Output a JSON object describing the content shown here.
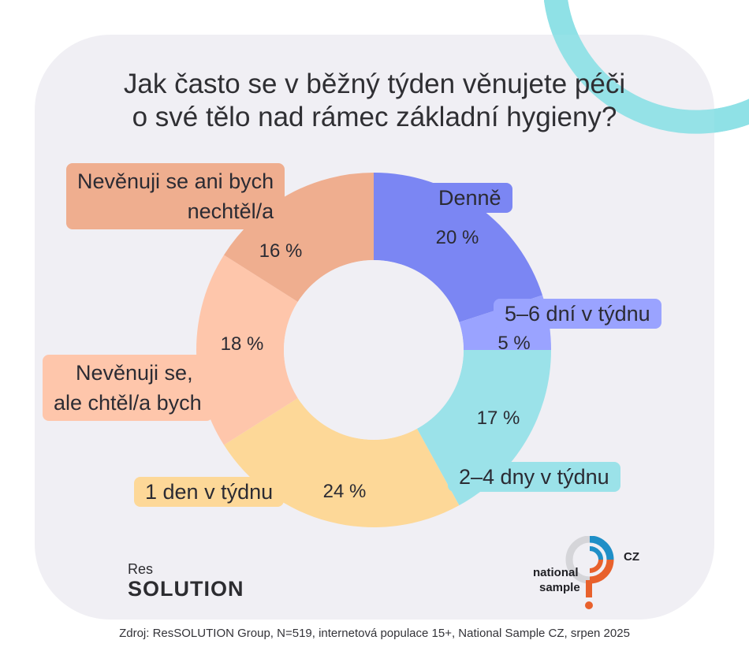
{
  "title_lines": [
    "Jak často se v běžný týden věnujete péči",
    "o své tělo nad rámec základní hygieny?"
  ],
  "chart_data": {
    "type": "pie",
    "subtype": "donut",
    "title": "Jak často se v běžný týden věnujete péči o své tělo nad rámec základní hygieny?",
    "unit": "%",
    "slices": [
      {
        "label": "Denně",
        "value": 20,
        "value_label": "20 %",
        "color": "#7b86f3"
      },
      {
        "label": "5–6 dní v týdnu",
        "value": 5,
        "value_label": "5 %",
        "color": "#9aa3ff"
      },
      {
        "label": "2–4 dny v týdnu",
        "value": 17,
        "value_label": "17 %",
        "color": "#9be2e9"
      },
      {
        "label": "1 den v týdnu",
        "value": 24,
        "value_label": "24 %",
        "color": "#fdd898"
      },
      {
        "label_lines": [
          "Nevěnuji se,",
          "ale chtěl/a bych"
        ],
        "value": 18,
        "value_label": "18 %",
        "color": "#fec6ab"
      },
      {
        "label_lines": [
          "Nevěnuji se ani bych",
          "nechtěl/a"
        ],
        "value": 16,
        "value_label": "16 %",
        "color": "#efae8f"
      }
    ]
  },
  "logos": {
    "res_small": "Res",
    "res_big": "SOLUTION",
    "ns_line1": "national",
    "ns_line2": "sample",
    "ns_country": "CZ"
  },
  "source": "Zdroj: ResSOLUTION Group, N=519, internetová populace 15+, National Sample CZ, srpen 2025",
  "colors": {
    "card_bg": "#f0eff4",
    "decor_ring": "#8fe0e6",
    "ns_blue": "#1f8fc7",
    "ns_orange": "#e8612c",
    "ns_gray": "#d5d5d9"
  }
}
